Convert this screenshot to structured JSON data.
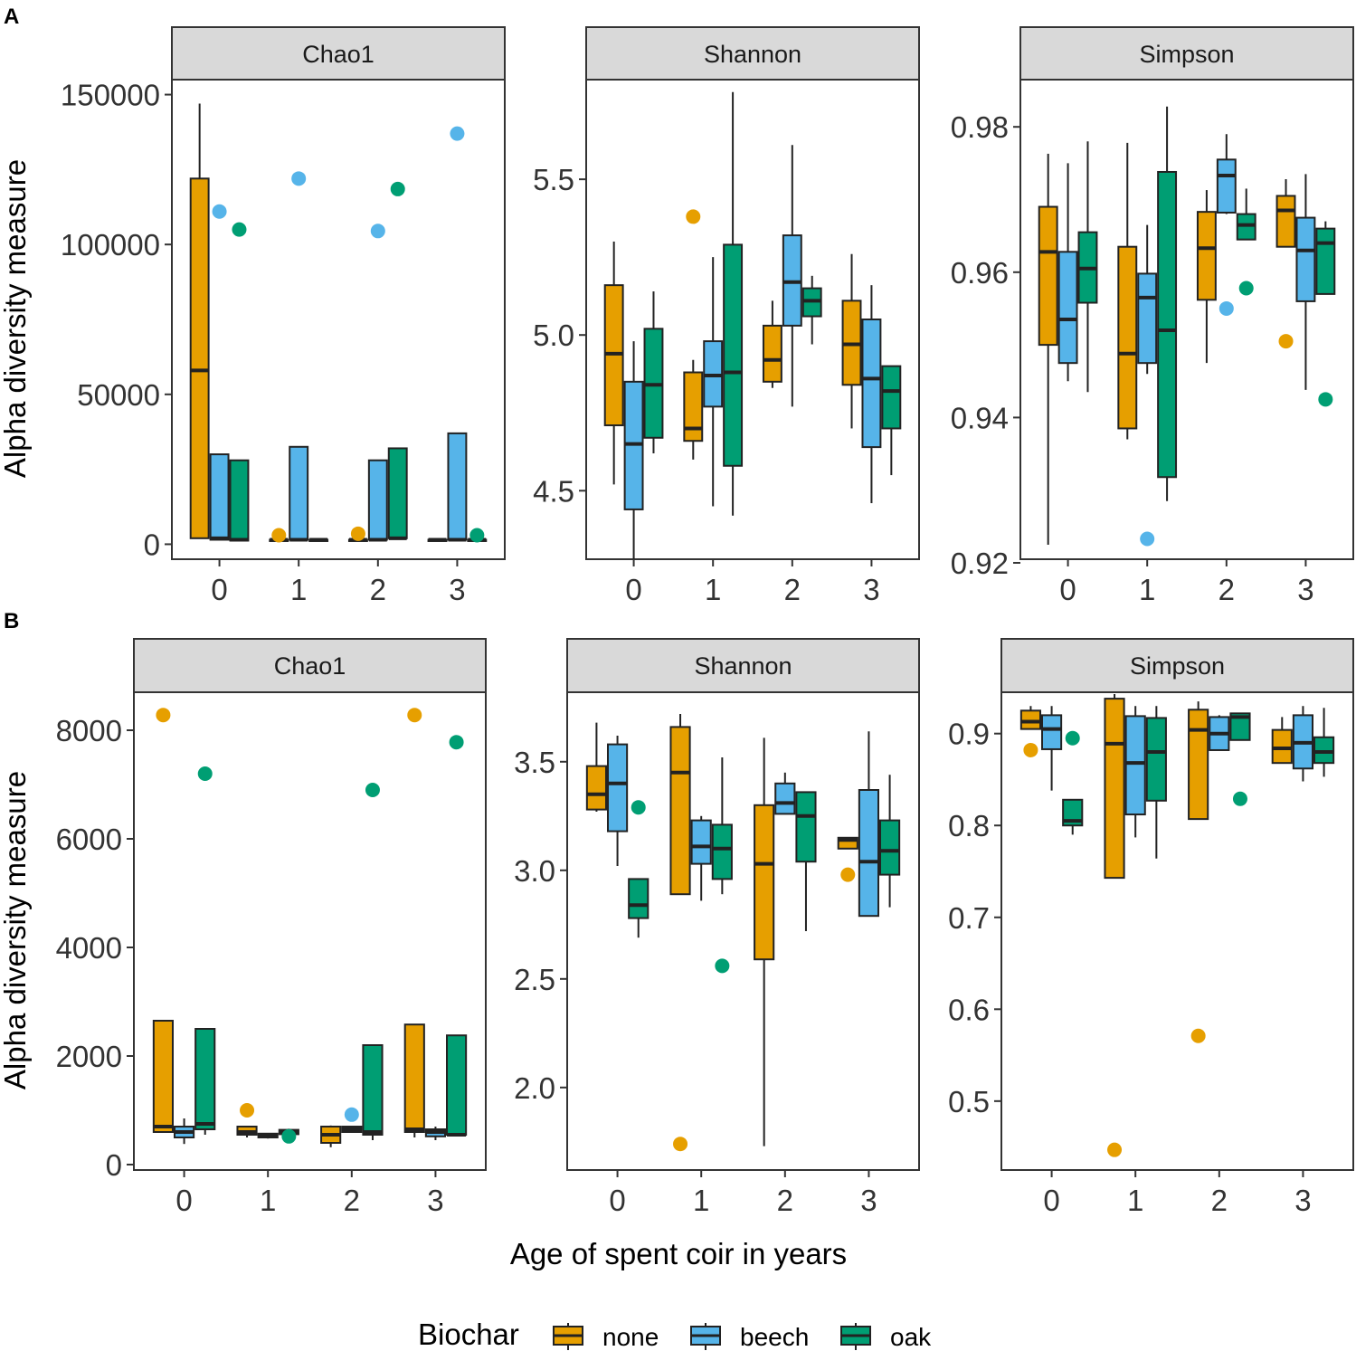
{
  "figure": {
    "panel_labels": [
      "A",
      "B"
    ],
    "xlabel": "Age of spent coir in years",
    "ylabel": "Alpha diversity measure",
    "legend_title": "Biochar",
    "groups": [
      {
        "key": "none",
        "label": "none",
        "color": "#E69F00"
      },
      {
        "key": "beech",
        "label": "beech",
        "color": "#56B4E9"
      },
      {
        "key": "oak",
        "label": "oak",
        "color": "#009E73"
      }
    ]
  },
  "chart_data": [
    {
      "type": "box",
      "row": "A",
      "title": "Chao1",
      "categories": [
        "0",
        "1",
        "2",
        "3"
      ],
      "ylim": [
        -5000,
        155000
      ],
      "yticks": [
        0,
        50000,
        100000,
        150000
      ],
      "yticklabels": [
        "0",
        "50000",
        "100000",
        "150000"
      ],
      "boxes": [
        {
          "cat": 0,
          "group": "none",
          "lo": 2000,
          "q1": 2000,
          "med": 58000,
          "q3": 122000,
          "hi": 147000
        },
        {
          "cat": 0,
          "group": "beech",
          "lo": 1500,
          "q1": 1500,
          "med": 2000,
          "q3": 30000,
          "hi": 30000
        },
        {
          "cat": 0,
          "group": "oak",
          "lo": 1200,
          "q1": 1200,
          "med": 1500,
          "q3": 28000,
          "hi": 28000
        },
        {
          "cat": 1,
          "group": "none",
          "lo": 1500,
          "q1": 1500,
          "med": 1500,
          "q3": 1500,
          "hi": 1500
        },
        {
          "cat": 1,
          "group": "beech",
          "lo": 1500,
          "q1": 1500,
          "med": 1500,
          "q3": 32500,
          "hi": 32500
        },
        {
          "cat": 1,
          "group": "oak",
          "lo": 1500,
          "q1": 1500,
          "med": 1500,
          "q3": 1500,
          "hi": 1500
        },
        {
          "cat": 2,
          "group": "none",
          "lo": 1500,
          "q1": 1500,
          "med": 1500,
          "q3": 1500,
          "hi": 1500
        },
        {
          "cat": 2,
          "group": "beech",
          "lo": 1500,
          "q1": 1500,
          "med": 1500,
          "q3": 28000,
          "hi": 28000
        },
        {
          "cat": 2,
          "group": "oak",
          "lo": 2000,
          "q1": 2000,
          "med": 2000,
          "q3": 32000,
          "hi": 32000
        },
        {
          "cat": 3,
          "group": "none",
          "lo": 1500,
          "q1": 1500,
          "med": 1500,
          "q3": 1500,
          "hi": 1500
        },
        {
          "cat": 3,
          "group": "beech",
          "lo": 1500,
          "q1": 1500,
          "med": 1500,
          "q3": 37000,
          "hi": 37000
        },
        {
          "cat": 3,
          "group": "oak",
          "lo": 1500,
          "q1": 1500,
          "med": 1500,
          "q3": 1500,
          "hi": 1500
        }
      ],
      "outliers": [
        {
          "cat": 0,
          "group": "beech",
          "y": 111000
        },
        {
          "cat": 0,
          "group": "oak",
          "y": 105000
        },
        {
          "cat": 1,
          "group": "none",
          "y": 3000
        },
        {
          "cat": 1,
          "group": "beech",
          "y": 122000
        },
        {
          "cat": 2,
          "group": "none",
          "y": 3500
        },
        {
          "cat": 2,
          "group": "beech",
          "y": 104500
        },
        {
          "cat": 2,
          "group": "oak",
          "y": 118500
        },
        {
          "cat": 3,
          "group": "beech",
          "y": 137000
        },
        {
          "cat": 3,
          "group": "oak",
          "y": 3000
        }
      ]
    },
    {
      "type": "box",
      "row": "A",
      "title": "Shannon",
      "categories": [
        "0",
        "1",
        "2",
        "3"
      ],
      "ylim": [
        4.28,
        5.82
      ],
      "yticks": [
        4.5,
        5.0,
        5.5
      ],
      "yticklabels": [
        "4.5",
        "5.0",
        "5.5"
      ],
      "boxes": [
        {
          "cat": 0,
          "group": "none",
          "lo": 4.52,
          "q1": 4.71,
          "med": 4.94,
          "q3": 5.16,
          "hi": 5.3
        },
        {
          "cat": 0,
          "group": "beech",
          "lo": 4.28,
          "q1": 4.44,
          "med": 4.65,
          "q3": 4.85,
          "hi": 4.98
        },
        {
          "cat": 0,
          "group": "oak",
          "lo": 4.62,
          "q1": 4.67,
          "med": 4.84,
          "q3": 5.02,
          "hi": 5.14
        },
        {
          "cat": 1,
          "group": "none",
          "lo": 4.6,
          "q1": 4.66,
          "med": 4.7,
          "q3": 4.88,
          "hi": 4.92
        },
        {
          "cat": 1,
          "group": "beech",
          "lo": 4.45,
          "q1": 4.77,
          "med": 4.87,
          "q3": 4.98,
          "hi": 5.25
        },
        {
          "cat": 1,
          "group": "oak",
          "lo": 4.42,
          "q1": 4.58,
          "med": 4.88,
          "q3": 5.29,
          "hi": 5.78
        },
        {
          "cat": 2,
          "group": "none",
          "lo": 4.83,
          "q1": 4.85,
          "med": 4.92,
          "q3": 5.03,
          "hi": 5.11
        },
        {
          "cat": 2,
          "group": "beech",
          "lo": 4.77,
          "q1": 5.03,
          "med": 5.17,
          "q3": 5.32,
          "hi": 5.61
        },
        {
          "cat": 2,
          "group": "oak",
          "lo": 4.97,
          "q1": 5.06,
          "med": 5.11,
          "q3": 5.15,
          "hi": 5.19
        },
        {
          "cat": 3,
          "group": "none",
          "lo": 4.7,
          "q1": 4.84,
          "med": 4.97,
          "q3": 5.11,
          "hi": 5.26
        },
        {
          "cat": 3,
          "group": "beech",
          "lo": 4.46,
          "q1": 4.64,
          "med": 4.86,
          "q3": 5.05,
          "hi": 5.16
        },
        {
          "cat": 3,
          "group": "oak",
          "lo": 4.55,
          "q1": 4.7,
          "med": 4.82,
          "q3": 4.9,
          "hi": 4.9
        }
      ],
      "outliers": [
        {
          "cat": 1,
          "group": "none",
          "y": 5.38
        }
      ]
    },
    {
      "type": "box",
      "row": "A",
      "title": "Simpson",
      "categories": [
        "0",
        "1",
        "2",
        "3"
      ],
      "ylim": [
        0.9205,
        0.9865
      ],
      "yticks": [
        0.92,
        0.94,
        0.96,
        0.98
      ],
      "yticklabels": [
        "0.92",
        "0.94",
        "0.96",
        "0.98"
      ],
      "boxes": [
        {
          "cat": 0,
          "group": "none",
          "lo": 0.9225,
          "q1": 0.95,
          "med": 0.9628,
          "q3": 0.969,
          "hi": 0.9763
        },
        {
          "cat": 0,
          "group": "beech",
          "lo": 0.945,
          "q1": 0.9475,
          "med": 0.9535,
          "q3": 0.9628,
          "hi": 0.975
        },
        {
          "cat": 0,
          "group": "oak",
          "lo": 0.9435,
          "q1": 0.9558,
          "med": 0.9605,
          "q3": 0.9655,
          "hi": 0.978
        },
        {
          "cat": 1,
          "group": "none",
          "lo": 0.937,
          "q1": 0.9385,
          "med": 0.9488,
          "q3": 0.9635,
          "hi": 0.9778
        },
        {
          "cat": 1,
          "group": "beech",
          "lo": 0.946,
          "q1": 0.9475,
          "med": 0.9565,
          "q3": 0.9598,
          "hi": 0.9665
        },
        {
          "cat": 1,
          "group": "oak",
          "lo": 0.9285,
          "q1": 0.9318,
          "med": 0.952,
          "q3": 0.9738,
          "hi": 0.9828
        },
        {
          "cat": 2,
          "group": "none",
          "lo": 0.9475,
          "q1": 0.9562,
          "med": 0.9633,
          "q3": 0.9683,
          "hi": 0.9713
        },
        {
          "cat": 2,
          "group": "beech",
          "lo": 0.968,
          "q1": 0.9682,
          "med": 0.9733,
          "q3": 0.9755,
          "hi": 0.979
        },
        {
          "cat": 2,
          "group": "oak",
          "lo": 0.9645,
          "q1": 0.9645,
          "med": 0.9665,
          "q3": 0.968,
          "hi": 0.9715
        },
        {
          "cat": 3,
          "group": "none",
          "lo": 0.9635,
          "q1": 0.9635,
          "med": 0.9685,
          "q3": 0.9705,
          "hi": 0.9728
        },
        {
          "cat": 3,
          "group": "beech",
          "lo": 0.9438,
          "q1": 0.956,
          "med": 0.963,
          "q3": 0.9675,
          "hi": 0.9735
        },
        {
          "cat": 3,
          "group": "oak",
          "lo": 0.957,
          "q1": 0.957,
          "med": 0.964,
          "q3": 0.966,
          "hi": 0.967
        }
      ],
      "outliers": [
        {
          "cat": 1,
          "group": "beech",
          "y": 0.9233
        },
        {
          "cat": 2,
          "group": "beech",
          "y": 0.955
        },
        {
          "cat": 2,
          "group": "oak",
          "y": 0.9578
        },
        {
          "cat": 3,
          "group": "none",
          "y": 0.9505
        },
        {
          "cat": 3,
          "group": "oak",
          "y": 0.9425
        }
      ]
    },
    {
      "type": "box",
      "row": "B",
      "title": "Chao1",
      "categories": [
        "0",
        "1",
        "2",
        "3"
      ],
      "ylim": [
        -100,
        8700
      ],
      "yticks": [
        0,
        2000,
        4000,
        6000,
        8000
      ],
      "yticklabels": [
        "0",
        "2000",
        "4000",
        "6000",
        "8000"
      ],
      "boxes": [
        {
          "cat": 0,
          "group": "none",
          "lo": 600,
          "q1": 600,
          "med": 700,
          "q3": 2650,
          "hi": 2650
        },
        {
          "cat": 0,
          "group": "beech",
          "lo": 380,
          "q1": 500,
          "med": 600,
          "q3": 700,
          "hi": 850
        },
        {
          "cat": 0,
          "group": "oak",
          "lo": 550,
          "q1": 650,
          "med": 750,
          "q3": 2500,
          "hi": 2500
        },
        {
          "cat": 1,
          "group": "none",
          "lo": 500,
          "q1": 550,
          "med": 600,
          "q3": 700,
          "hi": 700
        },
        {
          "cat": 1,
          "group": "beech",
          "lo": 480,
          "q1": 500,
          "med": 540,
          "q3": 570,
          "hi": 580
        },
        {
          "cat": 1,
          "group": "oak",
          "lo": 540,
          "q1": 560,
          "med": 600,
          "q3": 640,
          "hi": 660
        },
        {
          "cat": 2,
          "group": "none",
          "lo": 320,
          "q1": 400,
          "med": 550,
          "q3": 700,
          "hi": 720
        },
        {
          "cat": 2,
          "group": "beech",
          "lo": 600,
          "q1": 600,
          "med": 650,
          "q3": 700,
          "hi": 700
        },
        {
          "cat": 2,
          "group": "oak",
          "lo": 450,
          "q1": 550,
          "med": 600,
          "q3": 2200,
          "hi": 2200
        },
        {
          "cat": 3,
          "group": "none",
          "lo": 500,
          "q1": 600,
          "med": 650,
          "q3": 2580,
          "hi": 2580
        },
        {
          "cat": 3,
          "group": "beech",
          "lo": 450,
          "q1": 520,
          "med": 600,
          "q3": 650,
          "hi": 700
        },
        {
          "cat": 3,
          "group": "oak",
          "lo": 550,
          "q1": 550,
          "med": 550,
          "q3": 2380,
          "hi": 2380
        }
      ],
      "outliers": [
        {
          "cat": 0,
          "group": "none",
          "y": 8280
        },
        {
          "cat": 0,
          "group": "oak",
          "y": 7200
        },
        {
          "cat": 1,
          "group": "none",
          "y": 1000
        },
        {
          "cat": 1,
          "group": "oak",
          "y": 520
        },
        {
          "cat": 2,
          "group": "beech",
          "y": 920
        },
        {
          "cat": 2,
          "group": "oak",
          "y": 6900
        },
        {
          "cat": 3,
          "group": "none",
          "y": 8280
        },
        {
          "cat": 3,
          "group": "oak",
          "y": 7780
        }
      ]
    },
    {
      "type": "box",
      "row": "B",
      "title": "Shannon",
      "categories": [
        "0",
        "1",
        "2",
        "3"
      ],
      "ylim": [
        1.62,
        3.82
      ],
      "yticks": [
        2.0,
        2.5,
        3.0,
        3.5
      ],
      "yticklabels": [
        "2.0",
        "2.5",
        "3.0",
        "3.5"
      ],
      "boxes": [
        {
          "cat": 0,
          "group": "none",
          "lo": 3.27,
          "q1": 3.28,
          "med": 3.35,
          "q3": 3.48,
          "hi": 3.68
        },
        {
          "cat": 0,
          "group": "beech",
          "lo": 3.02,
          "q1": 3.18,
          "med": 3.4,
          "q3": 3.58,
          "hi": 3.62
        },
        {
          "cat": 0,
          "group": "oak",
          "lo": 2.69,
          "q1": 2.78,
          "med": 2.84,
          "q3": 2.96,
          "hi": 2.96
        },
        {
          "cat": 1,
          "group": "none",
          "lo": 2.89,
          "q1": 2.89,
          "med": 3.45,
          "q3": 3.66,
          "hi": 3.72
        },
        {
          "cat": 1,
          "group": "beech",
          "lo": 2.86,
          "q1": 3.03,
          "med": 3.11,
          "q3": 3.23,
          "hi": 3.25
        },
        {
          "cat": 1,
          "group": "oak",
          "lo": 2.89,
          "q1": 2.96,
          "med": 3.1,
          "q3": 3.21,
          "hi": 3.52
        },
        {
          "cat": 2,
          "group": "none",
          "lo": 1.73,
          "q1": 2.59,
          "med": 3.03,
          "q3": 3.3,
          "hi": 3.61
        },
        {
          "cat": 2,
          "group": "beech",
          "lo": 3.26,
          "q1": 3.26,
          "med": 3.31,
          "q3": 3.4,
          "hi": 3.45
        },
        {
          "cat": 2,
          "group": "oak",
          "lo": 2.72,
          "q1": 3.04,
          "med": 3.25,
          "q3": 3.36,
          "hi": 3.36
        },
        {
          "cat": 3,
          "group": "none",
          "lo": 3.1,
          "q1": 3.1,
          "med": 3.14,
          "q3": 3.15,
          "hi": 3.15
        },
        {
          "cat": 3,
          "group": "beech",
          "lo": 2.79,
          "q1": 2.79,
          "med": 3.04,
          "q3": 3.37,
          "hi": 3.64
        },
        {
          "cat": 3,
          "group": "oak",
          "lo": 2.83,
          "q1": 2.98,
          "med": 3.09,
          "q3": 3.23,
          "hi": 3.44
        }
      ],
      "outliers": [
        {
          "cat": 0,
          "group": "oak",
          "y": 3.29
        },
        {
          "cat": 1,
          "group": "none",
          "y": 1.74
        },
        {
          "cat": 1,
          "group": "oak",
          "y": 2.56
        },
        {
          "cat": 3,
          "group": "none",
          "y": 2.98
        }
      ]
    },
    {
      "type": "box",
      "row": "B",
      "title": "Simpson",
      "categories": [
        "0",
        "1",
        "2",
        "3"
      ],
      "ylim": [
        0.425,
        0.945
      ],
      "yticks": [
        0.5,
        0.6,
        0.7,
        0.8,
        0.9
      ],
      "yticklabels": [
        "0.5",
        "0.6",
        "0.7",
        "0.8",
        "0.9"
      ],
      "boxes": [
        {
          "cat": 0,
          "group": "none",
          "lo": 0.905,
          "q1": 0.905,
          "med": 0.913,
          "q3": 0.925,
          "hi": 0.93
        },
        {
          "cat": 0,
          "group": "beech",
          "lo": 0.838,
          "q1": 0.883,
          "med": 0.905,
          "q3": 0.92,
          "hi": 0.93
        },
        {
          "cat": 0,
          "group": "oak",
          "lo": 0.79,
          "q1": 0.8,
          "med": 0.805,
          "q3": 0.828,
          "hi": 0.828
        },
        {
          "cat": 1,
          "group": "none",
          "lo": 0.743,
          "q1": 0.743,
          "med": 0.889,
          "q3": 0.938,
          "hi": 0.943
        },
        {
          "cat": 1,
          "group": "beech",
          "lo": 0.787,
          "q1": 0.812,
          "med": 0.868,
          "q3": 0.919,
          "hi": 0.93
        },
        {
          "cat": 1,
          "group": "oak",
          "lo": 0.764,
          "q1": 0.827,
          "med": 0.88,
          "q3": 0.917,
          "hi": 0.93
        },
        {
          "cat": 2,
          "group": "none",
          "lo": 0.807,
          "q1": 0.807,
          "med": 0.904,
          "q3": 0.926,
          "hi": 0.935
        },
        {
          "cat": 2,
          "group": "beech",
          "lo": 0.882,
          "q1": 0.882,
          "med": 0.9,
          "q3": 0.918,
          "hi": 0.92
        },
        {
          "cat": 2,
          "group": "oak",
          "lo": 0.893,
          "q1": 0.893,
          "med": 0.918,
          "q3": 0.922,
          "hi": 0.922
        },
        {
          "cat": 3,
          "group": "none",
          "lo": 0.868,
          "q1": 0.868,
          "med": 0.884,
          "q3": 0.904,
          "hi": 0.918
        },
        {
          "cat": 3,
          "group": "beech",
          "lo": 0.848,
          "q1": 0.862,
          "med": 0.89,
          "q3": 0.92,
          "hi": 0.93
        },
        {
          "cat": 3,
          "group": "oak",
          "lo": 0.853,
          "q1": 0.868,
          "med": 0.88,
          "q3": 0.896,
          "hi": 0.928
        }
      ],
      "outliers": [
        {
          "cat": 0,
          "group": "none",
          "y": 0.882
        },
        {
          "cat": 0,
          "group": "oak",
          "y": 0.895
        },
        {
          "cat": 1,
          "group": "none",
          "y": 0.447
        },
        {
          "cat": 2,
          "group": "none",
          "y": 0.571
        },
        {
          "cat": 2,
          "group": "oak",
          "y": 0.829
        }
      ]
    }
  ]
}
